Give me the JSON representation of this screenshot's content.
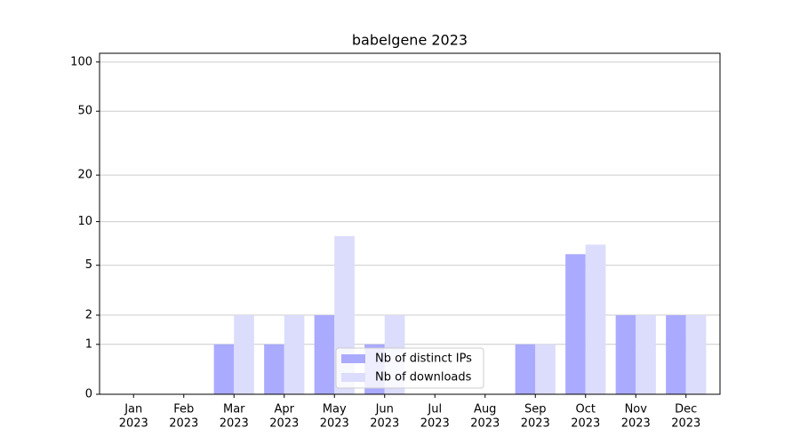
{
  "chart_data": {
    "type": "bar",
    "title": "babelgene 2023",
    "categories": [
      [
        "Jan",
        "2023"
      ],
      [
        "Feb",
        "2023"
      ],
      [
        "Mar",
        "2023"
      ],
      [
        "Apr",
        "2023"
      ],
      [
        "May",
        "2023"
      ],
      [
        "Jun",
        "2023"
      ],
      [
        "Jul",
        "2023"
      ],
      [
        "Aug",
        "2023"
      ],
      [
        "Sep",
        "2023"
      ],
      [
        "Oct",
        "2023"
      ],
      [
        "Nov",
        "2023"
      ],
      [
        "Dec",
        "2023"
      ]
    ],
    "series": [
      {
        "name": "Nb of distinct IPs",
        "color": "#aaaaff",
        "values": [
          0,
          0,
          1,
          1,
          2,
          1,
          0,
          0,
          1,
          6,
          2,
          2
        ]
      },
      {
        "name": "Nb of downloads",
        "color": "#dcdcfc",
        "values": [
          0,
          0,
          2,
          2,
          8,
          2,
          0,
          0,
          1,
          7,
          2,
          2
        ]
      }
    ],
    "yscale": "log1p",
    "ylim": [
      0,
      113
    ],
    "yticks": [
      0,
      1,
      2,
      5,
      10,
      20,
      50,
      100
    ],
    "grid": true,
    "legend": "lower center"
  }
}
